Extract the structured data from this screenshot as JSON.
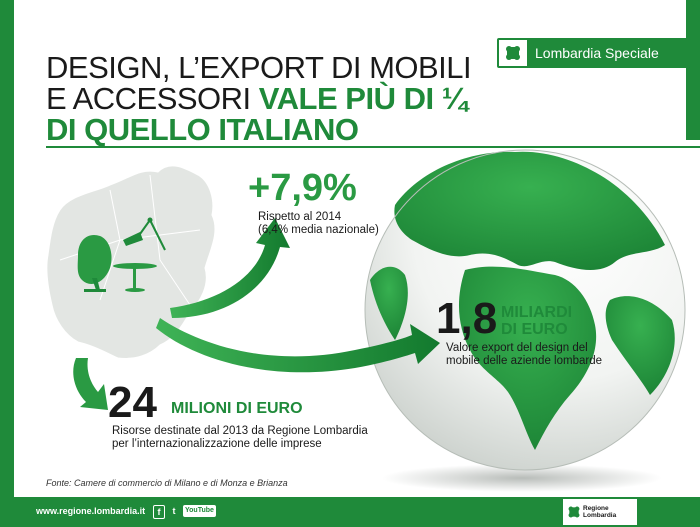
{
  "title": {
    "line1": "DESIGN, L’EXPORT DI MOBILI",
    "line2_plain": "E ACCESSORI ",
    "line2_highlight": "VALE PIÙ DI ¼",
    "line3": "DI QUELLO ITALIANO"
  },
  "badge": {
    "label": "Lombardia Speciale"
  },
  "stats": {
    "growth": {
      "value": "+7,9%",
      "note_line1": "Rispetto al 2014",
      "note_line2": "(6,4% media nazionale)"
    },
    "export": {
      "value": "1,8",
      "unit_line1": "MILIARDI",
      "unit_line2": "DI EURO",
      "note_line1": "Valore export del design del",
      "note_line2": "mobile delle aziende lombarde"
    },
    "funds": {
      "value": "24",
      "unit": "MILIONI DI EURO",
      "note_line1": "Risorse destinate dal 2013 da Regione Lombardia",
      "note_line2": "per l’internazionalizzazione delle imprese"
    }
  },
  "source": "Fonte: Camere di commercio di Milano e di Monza e Brianza",
  "footer": {
    "url": "www.regione.lombardia.it",
    "social": [
      "f",
      "t",
      "YouTube"
    ],
    "logo_line1": "Regione",
    "logo_line2": "Lombardia"
  },
  "colors": {
    "brand_green": "#1f8a3a",
    "light_green": "#2a9a43"
  }
}
